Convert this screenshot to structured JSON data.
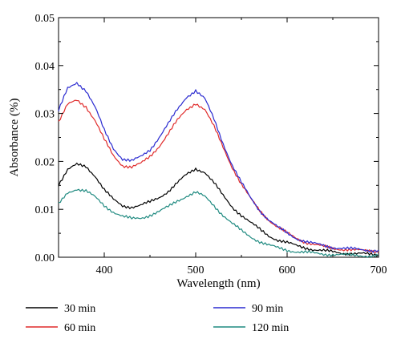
{
  "chart_data": {
    "type": "line",
    "xlabel": "Wavelength (nm)",
    "ylabel": "Absorbance (%)",
    "xlim": [
      350,
      700
    ],
    "ylim": [
      0,
      0.05
    ],
    "x_ticks": [
      "400",
      "500",
      "600",
      "700"
    ],
    "y_ticks": [
      "0.00",
      "0.01",
      "0.02",
      "0.03",
      "0.04",
      "0.05"
    ],
    "grid": false,
    "legend_position": "bottom",
    "x": [
      350,
      360,
      370,
      380,
      390,
      400,
      410,
      420,
      430,
      440,
      450,
      460,
      470,
      480,
      490,
      500,
      510,
      520,
      530,
      540,
      550,
      560,
      570,
      580,
      590,
      600,
      610,
      620,
      630,
      640,
      650,
      660,
      670,
      680,
      690,
      700
    ],
    "series": [
      {
        "name": "30 min",
        "color": "#000000",
        "values": [
          0.0152,
          0.0182,
          0.0193,
          0.019,
          0.017,
          0.014,
          0.012,
          0.0108,
          0.0105,
          0.0108,
          0.0115,
          0.0125,
          0.0138,
          0.0155,
          0.0172,
          0.0185,
          0.0178,
          0.0155,
          0.0128,
          0.0105,
          0.0088,
          0.0072,
          0.0058,
          0.0045,
          0.0036,
          0.003,
          0.0024,
          0.002,
          0.0016,
          0.0013,
          0.0011,
          0.0009,
          0.0008,
          0.0007,
          0.0006,
          0.0005
        ]
      },
      {
        "name": "60 min",
        "color": "#e02a2a",
        "values": [
          0.0282,
          0.0318,
          0.0328,
          0.0315,
          0.0285,
          0.0245,
          0.0212,
          0.0192,
          0.0188,
          0.0195,
          0.021,
          0.0232,
          0.0258,
          0.0285,
          0.0308,
          0.0322,
          0.0308,
          0.0272,
          0.023,
          0.0188,
          0.0152,
          0.0122,
          0.0098,
          0.0078,
          0.0062,
          0.005,
          0.004,
          0.0032,
          0.0026,
          0.0022,
          0.0019,
          0.0017,
          0.0015,
          0.0014,
          0.0014,
          0.0013
        ]
      },
      {
        "name": "90 min",
        "color": "#2a2ad0",
        "values": [
          0.0305,
          0.0352,
          0.0365,
          0.0348,
          0.0312,
          0.0265,
          0.0228,
          0.0205,
          0.02,
          0.021,
          0.0225,
          0.025,
          0.0278,
          0.0308,
          0.0335,
          0.0348,
          0.033,
          0.0288,
          0.0238,
          0.0192,
          0.0155,
          0.0124,
          0.0098,
          0.0078,
          0.0062,
          0.005,
          0.004,
          0.0033,
          0.0028,
          0.0024,
          0.0021,
          0.0019,
          0.0017,
          0.0016,
          0.0015,
          0.0014
        ]
      },
      {
        "name": "120 min",
        "color": "#1f8a80",
        "values": [
          0.011,
          0.0135,
          0.0143,
          0.0138,
          0.0125,
          0.0108,
          0.0095,
          0.0085,
          0.008,
          0.0082,
          0.0088,
          0.0095,
          0.0105,
          0.0118,
          0.0128,
          0.0135,
          0.0126,
          0.0108,
          0.0088,
          0.007,
          0.0055,
          0.0043,
          0.0033,
          0.0025,
          0.0019,
          0.0015,
          0.0012,
          0.001,
          0.0008,
          0.0007,
          0.0006,
          0.0005,
          0.0004,
          0.0004,
          0.0003,
          0.0003
        ]
      }
    ]
  }
}
